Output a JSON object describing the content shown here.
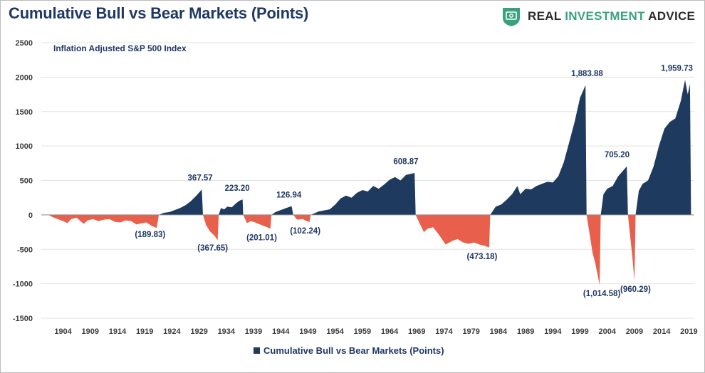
{
  "header": {
    "title": "Cumulative Bull vs Bear Markets (Points)",
    "brand_prefix": "REAL ",
    "brand_accent": "INVESTMENT",
    "brand_suffix": " ADVICE",
    "brand_icon": "shield-dollar-icon",
    "brand_color": "#3aa17e"
  },
  "chart_data": {
    "type": "area",
    "title": "Cumulative Bull vs Bear Markets (Points)",
    "subtitle": "Inflation Adjusted S&P 500 Index",
    "xlabel": "",
    "ylabel": "",
    "ylim": [
      -1500,
      2500
    ],
    "xlim": [
      1900,
      2020
    ],
    "yticks": [
      2500,
      2000,
      1500,
      1000,
      500,
      0,
      -500,
      -1000,
      -1500
    ],
    "xticks": [
      1904,
      1909,
      1914,
      1919,
      1924,
      1929,
      1934,
      1939,
      1944,
      1949,
      1954,
      1959,
      1964,
      1969,
      1974,
      1979,
      1984,
      1989,
      1994,
      1999,
      2004,
      2009,
      2014,
      2019
    ],
    "grid": true,
    "legend": "bottom",
    "series": [
      {
        "name": "Cumulative Bull vs Bear Markets (Points)",
        "color_bull": "#1f3a5f",
        "color_bear": "#e8604c",
        "segments": [
          {
            "kind": "bear",
            "start": 1901.3,
            "end": 1921.6,
            "peak_value": -189.83,
            "points": [
              [
                1901.3,
                0
              ],
              [
                1902,
                -30
              ],
              [
                1903,
                -60
              ],
              [
                1904,
                -90
              ],
              [
                1904.8,
                -120
              ],
              [
                1905.5,
                -60
              ],
              [
                1906.5,
                -40
              ],
              [
                1907.2,
                -90
              ],
              [
                1907.8,
                -130
              ],
              [
                1908.5,
                -80
              ],
              [
                1909.5,
                -60
              ],
              [
                1910.5,
                -90
              ],
              [
                1911.5,
                -70
              ],
              [
                1912.5,
                -60
              ],
              [
                1913.5,
                -100
              ],
              [
                1914.5,
                -110
              ],
              [
                1915.5,
                -80
              ],
              [
                1916.5,
                -90
              ],
              [
                1917.5,
                -140
              ],
              [
                1918.5,
                -120
              ],
              [
                1919.3,
                -110
              ],
              [
                1920.3,
                -160
              ],
              [
                1921.2,
                -189.83
              ],
              [
                1921.6,
                0
              ]
            ]
          },
          {
            "kind": "bull",
            "start": 1921.6,
            "end": 1929.7,
            "peak_value": 367.57,
            "points": [
              [
                1921.6,
                0
              ],
              [
                1922.5,
                30
              ],
              [
                1923.5,
                40
              ],
              [
                1924.5,
                70
              ],
              [
                1925.5,
                100
              ],
              [
                1926.5,
                140
              ],
              [
                1927.5,
                200
              ],
              [
                1928.5,
                280
              ],
              [
                1929.5,
                367.57
              ],
              [
                1929.7,
                0
              ]
            ]
          },
          {
            "kind": "bear",
            "start": 1929.7,
            "end": 1932.6,
            "peak_value": -367.65,
            "points": [
              [
                1929.7,
                0
              ],
              [
                1930.3,
                -150
              ],
              [
                1931,
                -240
              ],
              [
                1931.8,
                -300
              ],
              [
                1932.4,
                -367.65
              ],
              [
                1932.6,
                0
              ]
            ]
          },
          {
            "kind": "bull",
            "start": 1932.6,
            "end": 1937.1,
            "peak_value": 223.2,
            "points": [
              [
                1932.6,
                0
              ],
              [
                1933,
                100
              ],
              [
                1933.6,
                80
              ],
              [
                1934.2,
                120
              ],
              [
                1935,
                110
              ],
              [
                1935.8,
                170
              ],
              [
                1936.5,
                210
              ],
              [
                1937,
                223.2
              ],
              [
                1937.1,
                0
              ]
            ]
          },
          {
            "kind": "bear",
            "start": 1937.1,
            "end": 1942.3,
            "peak_value": -201.01,
            "points": [
              [
                1937.1,
                0
              ],
              [
                1937.8,
                -120
              ],
              [
                1938.5,
                -90
              ],
              [
                1939.3,
                -110
              ],
              [
                1940.2,
                -140
              ],
              [
                1941.2,
                -170
              ],
              [
                1942.1,
                -201.01
              ],
              [
                1942.3,
                0
              ]
            ]
          },
          {
            "kind": "bull",
            "start": 1942.3,
            "end": 1946.3,
            "peak_value": 126.94,
            "points": [
              [
                1942.3,
                0
              ],
              [
                1943,
                40
              ],
              [
                1944,
                70
              ],
              [
                1945,
                100
              ],
              [
                1946,
                126.94
              ],
              [
                1946.3,
                0
              ]
            ]
          },
          {
            "kind": "bear",
            "start": 1946.3,
            "end": 1949.5,
            "peak_value": -102.24,
            "points": [
              [
                1946.3,
                0
              ],
              [
                1947,
                -70
              ],
              [
                1948,
                -60
              ],
              [
                1948.8,
                -90
              ],
              [
                1949.3,
                -102.24
              ],
              [
                1949.5,
                0
              ]
            ]
          },
          {
            "kind": "bull",
            "start": 1949.5,
            "end": 1968.8,
            "peak_value": 608.87,
            "points": [
              [
                1949.5,
                0
              ],
              [
                1951,
                50
              ],
              [
                1953,
                80
              ],
              [
                1954,
                150
              ],
              [
                1955,
                240
              ],
              [
                1956,
                280
              ],
              [
                1957,
                250
              ],
              [
                1958,
                320
              ],
              [
                1959,
                360
              ],
              [
                1960,
                340
              ],
              [
                1961,
                420
              ],
              [
                1962,
                380
              ],
              [
                1963,
                440
              ],
              [
                1964,
                510
              ],
              [
                1965,
                550
              ],
              [
                1966,
                500
              ],
              [
                1967,
                580
              ],
              [
                1968.6,
                608.87
              ],
              [
                1968.8,
                0
              ]
            ]
          },
          {
            "kind": "bear",
            "start": 1968.8,
            "end": 1982.5,
            "peak_value": -473.18,
            "points": [
              [
                1968.8,
                0
              ],
              [
                1969.5,
                -120
              ],
              [
                1970.3,
                -250
              ],
              [
                1971,
                -200
              ],
              [
                1972,
                -180
              ],
              [
                1973,
                -280
              ],
              [
                1974.3,
                -430
              ],
              [
                1975.5,
                -380
              ],
              [
                1976.5,
                -350
              ],
              [
                1977.5,
                -400
              ],
              [
                1978.5,
                -420
              ],
              [
                1979.5,
                -400
              ],
              [
                1980.5,
                -430
              ],
              [
                1981.5,
                -450
              ],
              [
                1982.3,
                -473.18
              ],
              [
                1982.5,
                0
              ]
            ]
          },
          {
            "kind": "bull",
            "start": 1982.5,
            "end": 2000.2,
            "peak_value": 1883.88,
            "points": [
              [
                1982.5,
                0
              ],
              [
                1983.5,
                120
              ],
              [
                1984.5,
                150
              ],
              [
                1985.5,
                220
              ],
              [
                1986.5,
                300
              ],
              [
                1987.5,
                420
              ],
              [
                1988,
                300
              ],
              [
                1989,
                380
              ],
              [
                1990,
                370
              ],
              [
                1991,
                420
              ],
              [
                1992,
                450
              ],
              [
                1993,
                480
              ],
              [
                1994,
                470
              ],
              [
                1995,
                560
              ],
              [
                1996,
                760
              ],
              [
                1997,
                1050
              ],
              [
                1998,
                1350
              ],
              [
                1999,
                1700
              ],
              [
                2000,
                1883.88
              ],
              [
                2000.2,
                0
              ]
            ]
          },
          {
            "kind": "bear",
            "start": 2000.2,
            "end": 2002.8,
            "peak_value": -1014.58,
            "points": [
              [
                2000.2,
                0
              ],
              [
                2000.8,
                -300
              ],
              [
                2001.3,
                -550
              ],
              [
                2001.8,
                -700
              ],
              [
                2002.3,
                -900
              ],
              [
                2002.6,
                -1014.58
              ],
              [
                2002.8,
                0
              ]
            ]
          },
          {
            "kind": "bull",
            "start": 2002.8,
            "end": 2007.8,
            "peak_value": 705.2,
            "points": [
              [
                2002.8,
                0
              ],
              [
                2003.3,
                300
              ],
              [
                2004,
                380
              ],
              [
                2005,
                420
              ],
              [
                2006,
                560
              ],
              [
                2007,
                650
              ],
              [
                2007.6,
                705.2
              ],
              [
                2007.8,
                0
              ]
            ]
          },
          {
            "kind": "bear",
            "start": 2007.8,
            "end": 2009.2,
            "peak_value": -960.29,
            "points": [
              [
                2007.8,
                0
              ],
              [
                2008.2,
                -300
              ],
              [
                2008.6,
                -600
              ],
              [
                2009,
                -960.29
              ],
              [
                2009.2,
                0
              ]
            ]
          },
          {
            "kind": "bull",
            "start": 2009.2,
            "end": 2019.4,
            "peak_value": 1959.73,
            "points": [
              [
                2009.2,
                0
              ],
              [
                2009.8,
                350
              ],
              [
                2010.5,
                450
              ],
              [
                2011.5,
                500
              ],
              [
                2012.5,
                700
              ],
              [
                2013.5,
                1000
              ],
              [
                2014.5,
                1250
              ],
              [
                2015.5,
                1350
              ],
              [
                2016.5,
                1400
              ],
              [
                2017.5,
                1650
              ],
              [
                2018.3,
                1959.73
              ],
              [
                2018.8,
                1750
              ],
              [
                2019.2,
                1900
              ],
              [
                2019.4,
                0
              ]
            ]
          }
        ]
      }
    ],
    "annotations": [
      {
        "text": "(189.83)",
        "x": 1920.0,
        "y": -320
      },
      {
        "text": "367.57",
        "x": 1929.2,
        "y": 500
      },
      {
        "text": "(367.65)",
        "x": 1931.5,
        "y": -520
      },
      {
        "text": "223.20",
        "x": 1936.0,
        "y": 350
      },
      {
        "text": "(201.01)",
        "x": 1940.5,
        "y": -370
      },
      {
        "text": "126.94",
        "x": 1945.5,
        "y": 250
      },
      {
        "text": "(102.24)",
        "x": 1948.5,
        "y": -270
      },
      {
        "text": "608.87",
        "x": 1967.0,
        "y": 740
      },
      {
        "text": "(473.18)",
        "x": 1981.0,
        "y": -640
      },
      {
        "text": "1,883.88",
        "x": 2000.3,
        "y": 2015
      },
      {
        "text": "(1,014.58)",
        "x": 2003.0,
        "y": -1180
      },
      {
        "text": "705.20",
        "x": 2005.8,
        "y": 835
      },
      {
        "text": "(960.29)",
        "x": 2009.2,
        "y": -1120
      },
      {
        "text": "1,959.73",
        "x": 2016.8,
        "y": 2090
      }
    ]
  },
  "legend": {
    "label": "Cumulative Bull vs Bear Markets (Points)"
  }
}
